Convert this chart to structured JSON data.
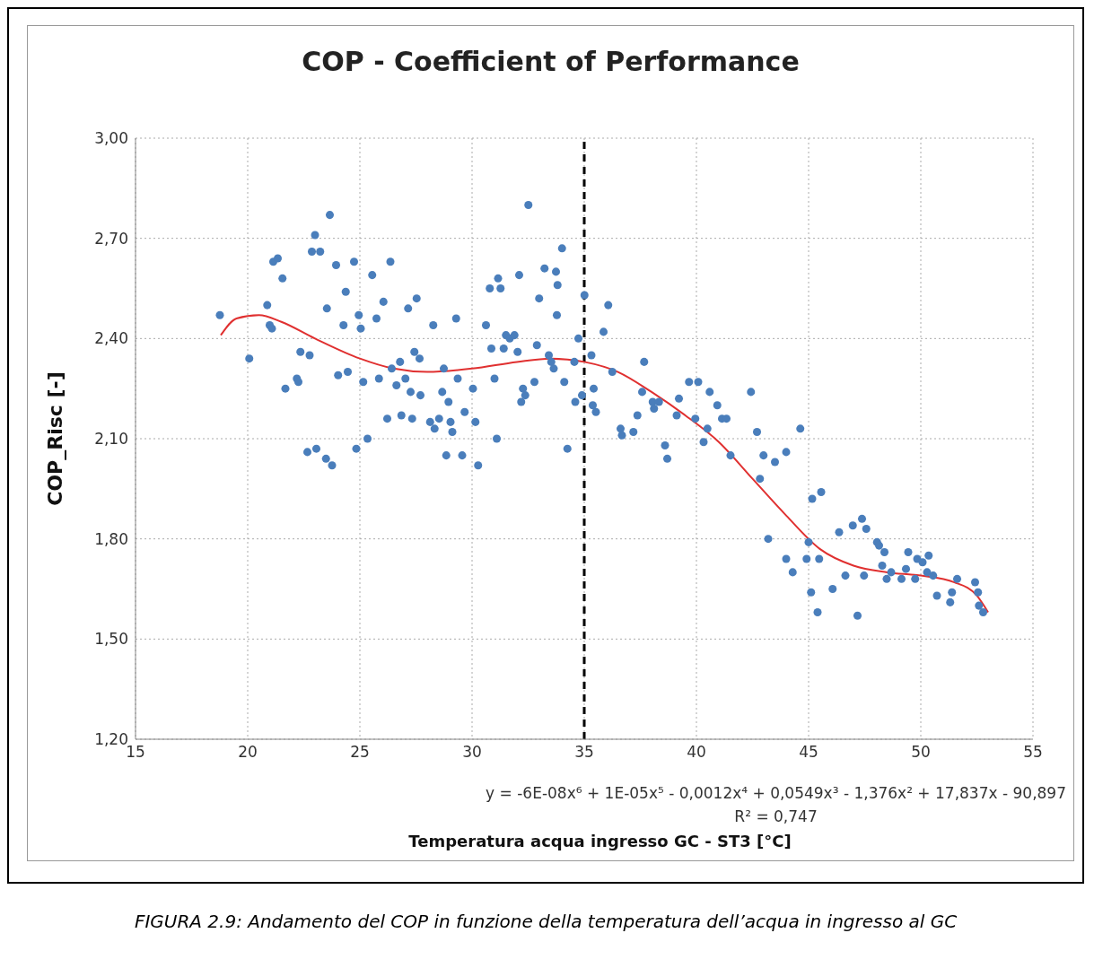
{
  "chart_data": {
    "type": "scatter",
    "title": "COP - Coefficient of Performance",
    "xlabel": "Temperatura acqua ingresso GC - ST3 [°C]",
    "ylabel": "COP_Risc [-]",
    "xlim": [
      15,
      55
    ],
    "xticks": [
      15,
      20,
      25,
      30,
      35,
      40,
      45,
      50,
      55
    ],
    "ylim": [
      1.2,
      3.0
    ],
    "yticks": [
      {
        "value": 1.2,
        "label": "1,20"
      },
      {
        "value": 1.5,
        "label": "1,50"
      },
      {
        "value": 1.8,
        "label": "1,80"
      },
      {
        "value": 2.1,
        "label": "2,10"
      },
      {
        "value": 2.4,
        "label": "2,40"
      },
      {
        "value": 2.7,
        "label": "2,70"
      },
      {
        "value": 3.0,
        "label": "3,00"
      }
    ],
    "grid": true,
    "legend": false,
    "series": [
      {
        "color": "#4a7ebb",
        "marker": "circle",
        "x": [
          18.76,
          20.07,
          23.66,
          23.0,
          22.86,
          23.23,
          21.14,
          21.34,
          21.55,
          23.94,
          24.74,
          25.55,
          26.36,
          24.37,
          26.05,
          27.53,
          20.87,
          23.53,
          27.15,
          24.95,
          25.74,
          20.98,
          21.08,
          24.27,
          25.04,
          28.27,
          22.35,
          22.76,
          27.43,
          27.66,
          26.79,
          26.42,
          24.03,
          24.46,
          25.15,
          25.85,
          27.03,
          26.63,
          27.26,
          27.7,
          22.19,
          22.26,
          21.68,
          26.22,
          26.85,
          27.33,
          28.13,
          28.33,
          22.66,
          23.06,
          23.49,
          23.76,
          24.84,
          25.34,
          28.74,
          29.29,
          30.62,
          32.51,
          34.01,
          33.23,
          33.74,
          32.1,
          31.16,
          30.79,
          31.27,
          33.81,
          35.01,
          32.99,
          36.07,
          33.78,
          35.86,
          34.74,
          31.51,
          31.68,
          31.89,
          30.86,
          31.41,
          32.89,
          32.03,
          33.42,
          33.53,
          33.64,
          34.56,
          35.32,
          37.67,
          36.25,
          31.0,
          32.78,
          34.11,
          29.36,
          28.67,
          30.04,
          28.95,
          32.27,
          32.37,
          32.19,
          34.6,
          34.9,
          35.42,
          35.38,
          35.52,
          29.67,
          28.53,
          29.04,
          29.12,
          30.15,
          31.1,
          28.85,
          29.56,
          30.27,
          34.25,
          37.58,
          36.62,
          36.68,
          37.19,
          37.37,
          38.05,
          38.33,
          38.11,
          39.67,
          40.08,
          40.59,
          40.93,
          41.14,
          41.34,
          39.12,
          39.22,
          39.95,
          40.49,
          40.32,
          38.6,
          38.7,
          41.52,
          42.43,
          42.7,
          42.83,
          42.99,
          43.5,
          44.0,
          44.63,
          43.2,
          44.0,
          44.29,
          44.91,
          45.47,
          45.0,
          45.11,
          45.4,
          45.16,
          45.56,
          46.07,
          46.36,
          46.64,
          46.97,
          47.38,
          47.57,
          47.18,
          47.47,
          48.05,
          48.14,
          48.38,
          48.28,
          48.48,
          48.68,
          49.14,
          49.44,
          49.34,
          49.75,
          49.84,
          50.08,
          50.35,
          50.28,
          50.55,
          50.72,
          51.31,
          51.39,
          51.62,
          52.42,
          52.55,
          52.59,
          52.78
        ],
        "values": [
          2.47,
          2.34,
          2.77,
          2.71,
          2.66,
          2.66,
          2.63,
          2.64,
          2.58,
          2.62,
          2.63,
          2.59,
          2.63,
          2.54,
          2.51,
          2.52,
          2.5,
          2.49,
          2.49,
          2.47,
          2.46,
          2.44,
          2.43,
          2.44,
          2.43,
          2.44,
          2.36,
          2.35,
          2.36,
          2.34,
          2.33,
          2.31,
          2.29,
          2.3,
          2.27,
          2.28,
          2.28,
          2.26,
          2.24,
          2.23,
          2.28,
          2.27,
          2.25,
          2.16,
          2.17,
          2.16,
          2.15,
          2.13,
          2.06,
          2.07,
          2.04,
          2.02,
          2.07,
          2.1,
          2.31,
          2.46,
          2.44,
          2.8,
          2.67,
          2.61,
          2.6,
          2.59,
          2.58,
          2.55,
          2.55,
          2.56,
          2.53,
          2.52,
          2.5,
          2.47,
          2.42,
          2.4,
          2.41,
          2.4,
          2.41,
          2.37,
          2.37,
          2.38,
          2.36,
          2.35,
          2.33,
          2.31,
          2.33,
          2.35,
          2.33,
          2.3,
          2.28,
          2.27,
          2.27,
          2.28,
          2.24,
          2.25,
          2.21,
          2.25,
          2.23,
          2.21,
          2.21,
          2.23,
          2.25,
          2.2,
          2.18,
          2.18,
          2.16,
          2.15,
          2.12,
          2.15,
          2.1,
          2.05,
          2.05,
          2.02,
          2.07,
          2.24,
          2.13,
          2.11,
          2.12,
          2.17,
          2.21,
          2.21,
          2.19,
          2.27,
          2.27,
          2.24,
          2.2,
          2.16,
          2.16,
          2.17,
          2.22,
          2.16,
          2.13,
          2.09,
          2.08,
          2.04,
          2.05,
          2.24,
          2.12,
          1.98,
          2.05,
          2.03,
          2.06,
          2.13,
          1.8,
          1.74,
          1.7,
          1.74,
          1.74,
          1.79,
          1.64,
          1.58,
          1.92,
          1.94,
          1.65,
          1.82,
          1.69,
          1.84,
          1.86,
          1.83,
          1.57,
          1.69,
          1.79,
          1.78,
          1.76,
          1.72,
          1.68,
          1.7,
          1.68,
          1.76,
          1.71,
          1.68,
          1.74,
          1.73,
          1.75,
          1.7,
          1.69,
          1.63,
          1.61,
          1.64,
          1.68,
          1.67,
          1.64,
          1.6,
          1.58
        ]
      },
      {
        "type": "line",
        "color": "#e03030",
        "x": [
          18.8,
          19.5,
          20.5,
          21.5,
          23,
          25,
          26.5,
          28,
          30,
          32,
          33.5,
          35,
          36.5,
          38,
          39.5,
          41,
          42.5,
          44,
          45.5,
          47,
          48.5,
          50,
          51.5,
          52.5,
          53
        ],
        "values": [
          2.41,
          2.46,
          2.47,
          2.45,
          2.4,
          2.34,
          2.31,
          2.3,
          2.31,
          2.33,
          2.34,
          2.33,
          2.3,
          2.24,
          2.17,
          2.09,
          1.98,
          1.87,
          1.77,
          1.72,
          1.7,
          1.69,
          1.67,
          1.63,
          1.58
        ]
      }
    ],
    "ref_lines": [
      {
        "axis": "x",
        "value": 35,
        "color": "#000000",
        "line_style": "dashed"
      }
    ],
    "annotations": [
      "y = -6E-08x⁶ + 1E-05x⁵ - 0,0012x⁴ + 0,0549x³ - 1,376x² + 17,837x - 90,897",
      "R² = 0,747",
      "FIGURA 2.9: Andamento del COP in funzione della temperatura dell’acqua in ingresso al GC"
    ]
  }
}
